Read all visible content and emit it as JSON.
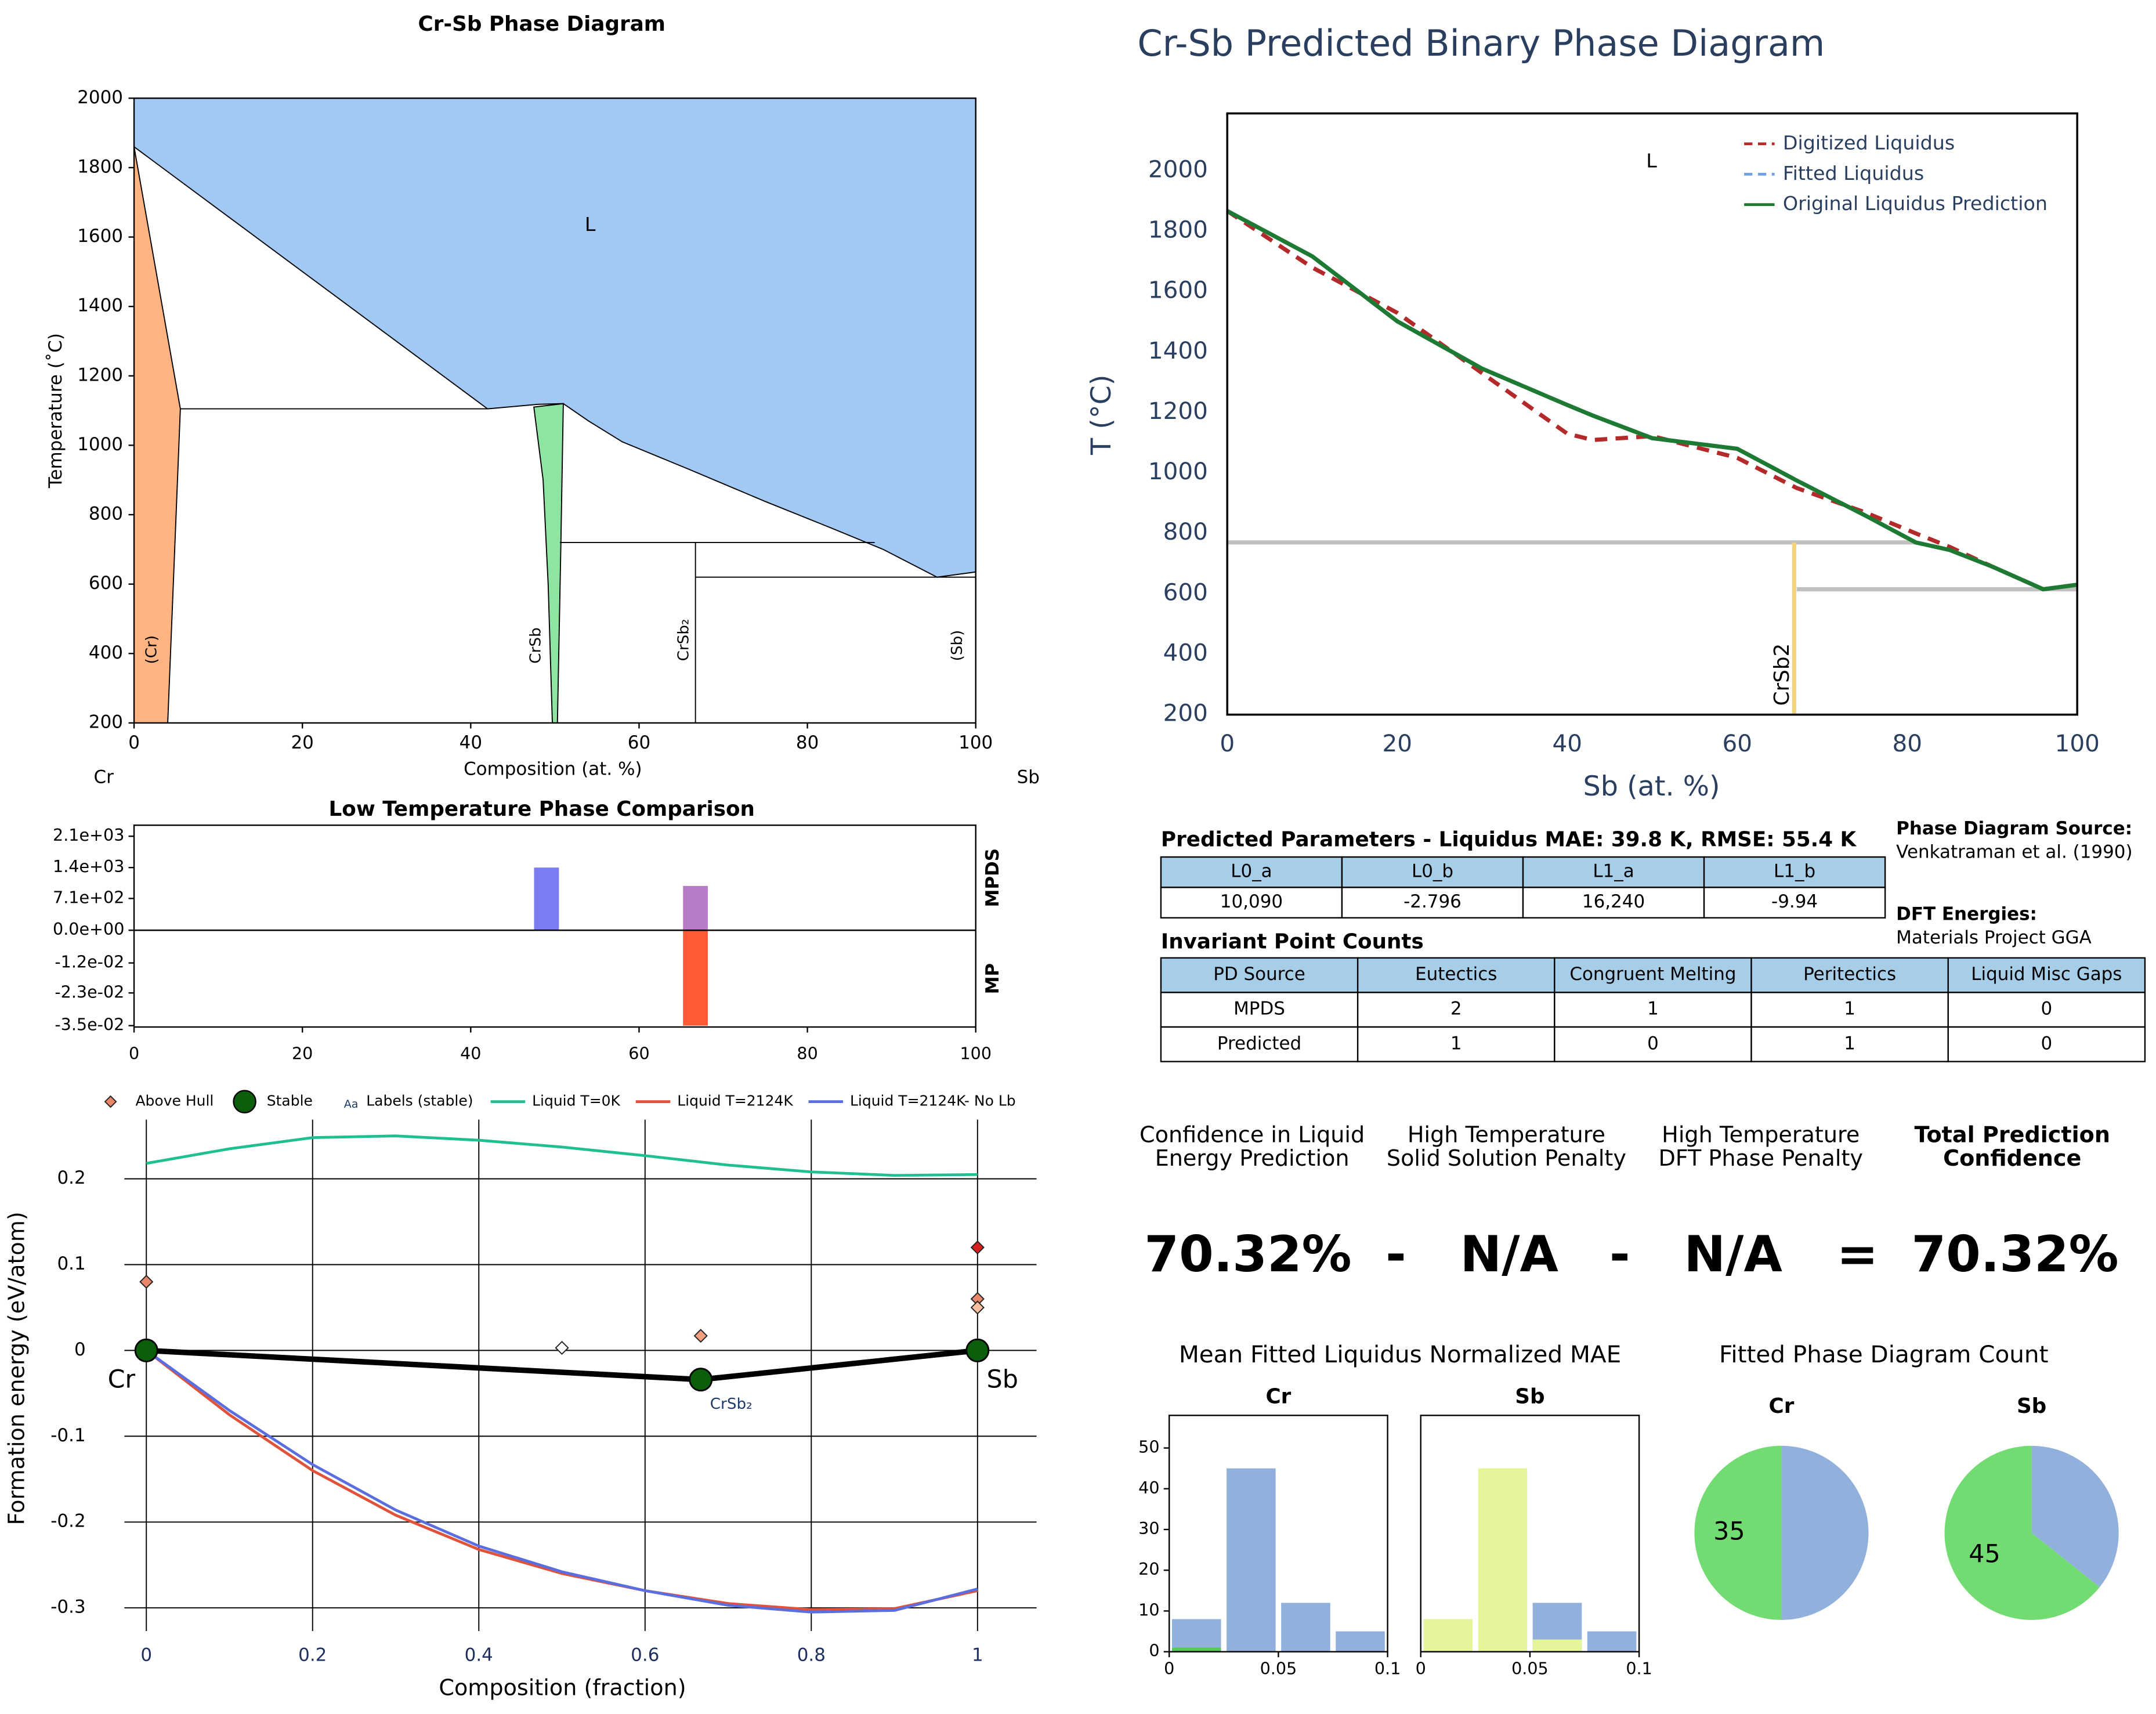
{
  "chart_data": [
    {
      "type": "area",
      "title": "Cr-Sb Phase Diagram",
      "xlabel": "Composition (at. %)",
      "ylabel": "Temperature (˚C)",
      "end_labels": [
        "Cr",
        "Sb"
      ],
      "xlim": [
        0,
        100
      ],
      "ylim": [
        200,
        2000
      ],
      "xticks": [
        0,
        20,
        40,
        60,
        80,
        100
      ],
      "yticks": [
        200,
        400,
        600,
        800,
        1000,
        1200,
        1400,
        1600,
        1800,
        2000
      ],
      "regions": [
        {
          "color": "#a1c9f4",
          "x": [
            0,
            100,
            100,
            95.4,
            93,
            89,
            83,
            75,
            66,
            58,
            54,
            51,
            48,
            42,
            0
          ],
          "y": [
            2000,
            2000,
            635,
            620,
            650,
            700,
            760,
            838,
            930,
            1010,
            1070,
            1120,
            1118,
            1105,
            1860
          ]
        },
        {
          "color": "#ffb482",
          "x": [
            0,
            5.5,
            4,
            0
          ],
          "y": [
            1860,
            1105,
            200,
            200
          ]
        },
        {
          "color": "#8de5a1",
          "x": [
            47.5,
            51,
            50.7,
            50.3,
            49.7,
            49.2,
            48.6
          ],
          "y": [
            1110,
            1120,
            700,
            200,
            200,
            600,
            900
          ]
        }
      ],
      "lines": [
        {
          "x": [
            5.5,
            42
          ],
          "y": [
            1105,
            1105
          ]
        },
        {
          "x": [
            66.7,
            66.7
          ],
          "y": [
            200,
            720
          ]
        },
        {
          "x": [
            50.6,
            88
          ],
          "y": [
            720,
            720
          ]
        },
        {
          "x": [
            66.7,
            100
          ],
          "y": [
            620,
            620
          ]
        }
      ],
      "annotations": [
        "L",
        "(Cr)",
        "CrSb",
        "CrSb₂",
        "(Sb)"
      ]
    },
    {
      "type": "line",
      "title": "Cr-Sb Predicted Binary Phase Diagram",
      "xlabel": "Sb (at. %)",
      "ylabel": "T (°C)",
      "xlim": [
        0,
        100
      ],
      "ylim": [
        200,
        2190
      ],
      "xticks": [
        0,
        20,
        40,
        60,
        80,
        100
      ],
      "yticks": [
        200,
        400,
        600,
        800,
        1000,
        1200,
        1400,
        1600,
        1800,
        2000
      ],
      "legend": "top right",
      "x": [
        0,
        10,
        20,
        30,
        40,
        43,
        50,
        60,
        67,
        75,
        81,
        85,
        90,
        96,
        100
      ],
      "series": [
        {
          "name": "Digitized Liquidus",
          "color": "#b22a2a",
          "dash": true,
          "values": [
            1867,
            1680,
            1530,
            1330,
            1130,
            1109,
            1122,
            1050,
            950,
            870,
            800,
            755,
            690,
            615,
            630
          ]
        },
        {
          "name": "Fitted Liquidus",
          "color": "#6fa0e0",
          "dash": true,
          "values": [
            1867,
            1717,
            1502,
            1345,
            1225,
            1190,
            1115,
            1080,
            975,
            860,
            770,
            745,
            690,
            615,
            630
          ]
        },
        {
          "name": "Original Liquidus Prediction",
          "color": "#1e7a32",
          "dash": false,
          "values": [
            1867,
            1717,
            1502,
            1345,
            1225,
            1190,
            1115,
            1080,
            975,
            860,
            770,
            745,
            690,
            615,
            630
          ]
        }
      ],
      "lines": [
        {
          "color": "#c0c0c0",
          "x": [
            0,
            81
          ],
          "y": [
            770,
            770
          ]
        },
        {
          "color": "#c0c0c0",
          "x": [
            67,
            100
          ],
          "y": [
            615,
            615
          ]
        },
        {
          "color": "#f5d37a",
          "x": [
            66.7,
            66.7
          ],
          "y": [
            200,
            770
          ]
        }
      ],
      "annotations": [
        "L",
        "CrSb2"
      ]
    },
    {
      "type": "bar",
      "title": "Low Temperature Phase Comparison",
      "xlim": [
        0,
        100
      ],
      "xticks": [
        0,
        20,
        40,
        60,
        80,
        100
      ],
      "panels": [
        {
          "label": "MPDS",
          "ylim": [
            0,
            2346
          ],
          "yticks": [
            {
              "value": 2100,
              "label": "2.1e+03"
            },
            {
              "value": 1400,
              "label": "1.4e+03"
            },
            {
              "value": 710,
              "label": "7.1e+02"
            },
            {
              "value": 0,
              "label": "0.0e+00"
            }
          ],
          "x": [
            49,
            66.7
          ],
          "values": [
            1400,
            990
          ],
          "colors": [
            "#7b7bf2",
            "#b87bc8"
          ]
        },
        {
          "label": "MP",
          "ylim": [
            -0.0355,
            0
          ],
          "yticks": [
            {
              "value": -0.012,
              "label": "-1.2e-02"
            },
            {
              "value": -0.023,
              "label": "-2.3e-02"
            },
            {
              "value": -0.035,
              "label": "-3.5e-02"
            }
          ],
          "x": [
            66.7
          ],
          "values": [
            -0.035
          ],
          "colors": [
            "#ff5a36"
          ]
        }
      ]
    },
    {
      "type": "scatter",
      "xlabel": "Composition (fraction)",
      "ylabel": "Formation energy (eV/atom)",
      "xlim": [
        -0.063,
        1.071
      ],
      "ylim": [
        -0.327,
        0.269
      ],
      "xticks": [
        0,
        0.2,
        0.4,
        0.6,
        0.8,
        1
      ],
      "yticks": [
        0.2,
        0.1,
        0,
        -0.1,
        -0.2,
        -0.3
      ],
      "grid": true,
      "legend": "top",
      "series": [
        {
          "name": "Above Hull",
          "marker": "diamond",
          "color": "#e8866a",
          "x": [
            0,
            0.5,
            0.667,
            1,
            1,
            1
          ],
          "values": [
            0.08,
            0.003,
            0.017,
            0.12,
            0.06,
            0.05
          ],
          "colors": [
            "#e8866a",
            "#ffffff",
            "#f0a080",
            "#d42020",
            "#e8866a",
            "#f5c0a0"
          ]
        },
        {
          "name": "Stable",
          "marker": "circle",
          "color": "#0b5e0b",
          "x": [
            0,
            0.667,
            1
          ],
          "values": [
            0,
            -0.034,
            0
          ]
        },
        {
          "name": "Labels (stable)",
          "marker": "text",
          "legend_icon": "Aa",
          "color": "#1f3a6a",
          "texts": [
            "Cr",
            "CrSb₂",
            "Sb"
          ],
          "x": [
            0,
            0.667,
            1
          ],
          "values": [
            0,
            -0.034,
            0
          ]
        },
        {
          "name": "Liquid T=0K",
          "marker": "line",
          "color": "#1fbf8f",
          "x": [
            0,
            0.1,
            0.2,
            0.3,
            0.4,
            0.5,
            0.6,
            0.7,
            0.8,
            0.9,
            1
          ],
          "values": [
            0.218,
            0.235,
            0.248,
            0.25,
            0.245,
            0.237,
            0.227,
            0.216,
            0.208,
            0.204,
            0.205
          ]
        },
        {
          "name": "Liquid T=2124K",
          "marker": "line",
          "color": "#e0533a",
          "x": [
            0,
            0.1,
            0.2,
            0.3,
            0.4,
            0.5,
            0.6,
            0.7,
            0.8,
            0.9,
            1
          ],
          "values": [
            0,
            -0.075,
            -0.14,
            -0.192,
            -0.232,
            -0.26,
            -0.28,
            -0.295,
            -0.302,
            -0.301,
            -0.28
          ]
        },
        {
          "name": "Liquid T=2124K- No Lb",
          "marker": "line",
          "color": "#5b6ee0",
          "x": [
            0,
            0.1,
            0.2,
            0.3,
            0.4,
            0.5,
            0.6,
            0.7,
            0.8,
            0.9,
            1
          ],
          "values": [
            0,
            -0.07,
            -0.133,
            -0.186,
            -0.228,
            -0.258,
            -0.28,
            -0.297,
            -0.305,
            -0.303,
            -0.278
          ]
        }
      ]
    },
    {
      "type": "histogram",
      "title": "Cr",
      "bins": [
        0,
        0.025,
        0.05,
        0.075,
        0.1
      ],
      "xlim": [
        0,
        0.1
      ],
      "ylim": [
        0,
        58
      ],
      "xticks": [
        0,
        0.05,
        0.1
      ],
      "yticks": [
        0,
        10,
        20,
        30,
        40,
        50
      ],
      "series": [
        {
          "color": "#92b0dc",
          "values": [
            8,
            45,
            12,
            5
          ]
        },
        {
          "color": "#5ac85a",
          "values": [
            1,
            0,
            0,
            0
          ]
        }
      ]
    },
    {
      "type": "histogram",
      "title": "Sb",
      "bins": [
        0,
        0.025,
        0.05,
        0.075,
        0.1
      ],
      "xlim": [
        0,
        0.1
      ],
      "ylim": [
        0,
        58
      ],
      "xticks": [
        0,
        0.05,
        0.1
      ],
      "series": [
        {
          "color": "#92b0dc",
          "values": [
            0,
            0,
            12,
            5
          ]
        },
        {
          "color": "#e5f59a",
          "values": [
            8,
            45,
            3,
            0
          ]
        }
      ]
    },
    {
      "type": "pie",
      "title": "Cr",
      "values": [
        35,
        35
      ],
      "colors": [
        "#92b0dc",
        "#72dc72"
      ],
      "value_labels": [
        null,
        "35"
      ]
    },
    {
      "type": "pie",
      "title": "Sb",
      "values": [
        25,
        45
      ],
      "colors": [
        "#92b0dc",
        "#72dc72"
      ],
      "value_labels": [
        null,
        "45"
      ]
    }
  ],
  "sections": [
    "Mean Fitted Liquidus Normalized MAE",
    "Fitted Phase Diagram Count"
  ],
  "parameters": {
    "title": "Predicted Parameters - Liquidus MAE: 39.8 K, RMSE: 55.4 K",
    "headers": [
      "L0_a",
      "L0_b",
      "L1_a",
      "L1_b"
    ],
    "rows": [
      [
        "10,090",
        "-2.796",
        "16,240",
        "-9.94"
      ]
    ]
  },
  "sources": [
    "Phase Diagram Source:",
    "Venkatraman et al. (1990)",
    "DFT Energies:",
    "Materials Project GGA"
  ],
  "invariants": {
    "title": "Invariant Point Counts",
    "headers": [
      "PD Source",
      "Eutectics",
      "Congruent Melting",
      "Peritectics",
      "Liquid Misc Gaps"
    ],
    "rows": [
      [
        "MPDS",
        2,
        1,
        1,
        0
      ],
      [
        "Predicted",
        1,
        0,
        1,
        0
      ]
    ]
  },
  "confidence": {
    "labels": [
      [
        "Confidence in Liquid",
        "Energy Prediction"
      ],
      [
        "High Temperature",
        "Solid Solution Penalty"
      ],
      [
        "High Temperature",
        "DFT Phase Penalty"
      ],
      [
        "Total Prediction",
        "Confidence"
      ]
    ],
    "values": [
      "70.32%",
      "N/A",
      "N/A",
      "70.32%"
    ],
    "operators": [
      "-",
      "-",
      "="
    ]
  }
}
